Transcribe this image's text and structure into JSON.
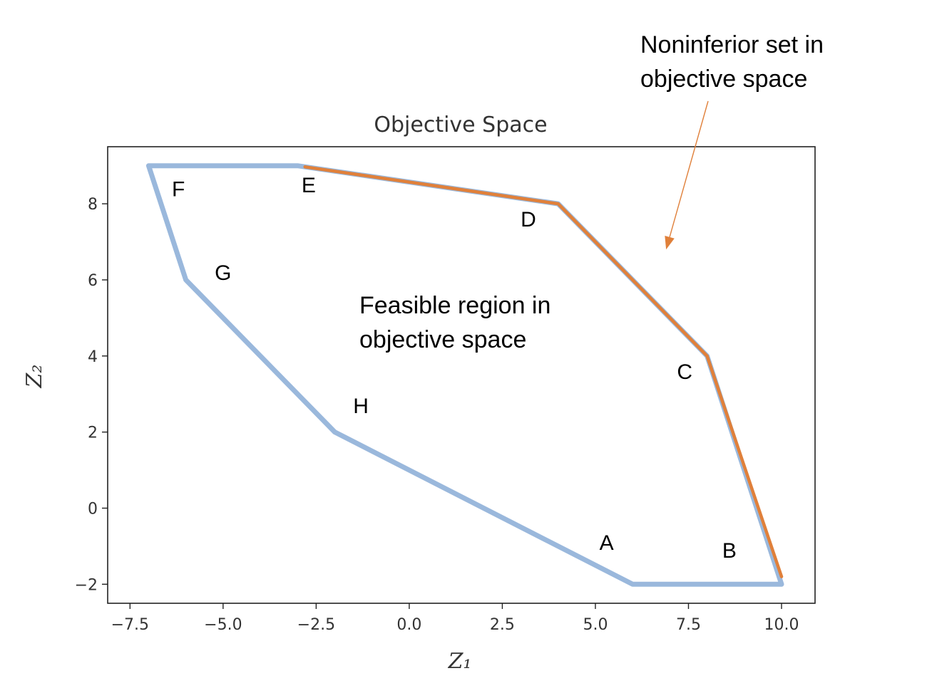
{
  "chart_data": {
    "type": "line",
    "title": "Objective Space",
    "xlabel": "Z₁",
    "ylabel": "Z₂",
    "xlim": [
      -8.1,
      10.9
    ],
    "ylim": [
      -2.5,
      9.5
    ],
    "xticks": [
      -7.5,
      -5.0,
      -2.5,
      0.0,
      2.5,
      5.0,
      7.5,
      10.0
    ],
    "xtick_labels": [
      "−7.5",
      "−5.0",
      "−2.5",
      "0.0",
      "2.5",
      "5.0",
      "7.5",
      "10.0"
    ],
    "yticks": [
      -2,
      0,
      2,
      4,
      6,
      8
    ],
    "ytick_labels": [
      "−2",
      "0",
      "2",
      "4",
      "6",
      "8"
    ],
    "grid": false,
    "series": [
      {
        "role": "feasible-region-boundary",
        "color": "#9ab8dc",
        "x": [
          -7,
          -3,
          4,
          8,
          10,
          6,
          -2,
          -6,
          -7
        ],
        "y": [
          9,
          9,
          8,
          4,
          -2,
          -2,
          2,
          6,
          9
        ]
      },
      {
        "role": "noninferior-set",
        "color": "#e0803a",
        "x": [
          -2.8,
          4,
          8,
          10
        ],
        "y": [
          8.97,
          8,
          4,
          -1.8
        ]
      }
    ],
    "point_labels": [
      {
        "text": "A",
        "x": 5.3,
        "y": -1.1
      },
      {
        "text": "B",
        "x": 8.6,
        "y": -1.3
      },
      {
        "text": "C",
        "x": 7.4,
        "y": 3.4
      },
      {
        "text": "D",
        "x": 3.2,
        "y": 7.4
      },
      {
        "text": "E",
        "x": -2.7,
        "y": 8.3
      },
      {
        "text": "F",
        "x": -6.2,
        "y": 8.2
      },
      {
        "text": "G",
        "x": -5.0,
        "y": 6.0
      },
      {
        "text": "H",
        "x": -1.3,
        "y": 2.5
      }
    ],
    "annotations": [
      {
        "lines": [
          "Feasible region in",
          "objective space"
        ],
        "x": -1.2,
        "y": 5.1
      },
      {
        "lines": [
          "Noninferior set in",
          "objective space"
        ],
        "arrow_to": [
          6.9,
          6.8
        ]
      }
    ]
  }
}
